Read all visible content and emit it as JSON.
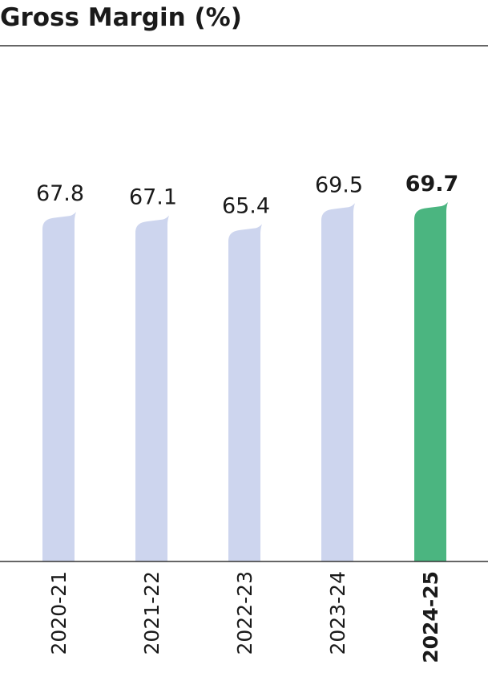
{
  "chart_data": {
    "type": "bar",
    "title": "Gross Margin (%)",
    "categories": [
      "2020-21",
      "2021-22",
      "2022-23",
      "2023-24",
      "2024-25"
    ],
    "values": [
      67.8,
      67.1,
      65.4,
      69.5,
      69.7
    ],
    "colors": [
      "#cdd5ee",
      "#cdd5ee",
      "#cdd5ee",
      "#cdd5ee",
      "#4bb580"
    ],
    "ylim": [
      0,
      100
    ]
  }
}
